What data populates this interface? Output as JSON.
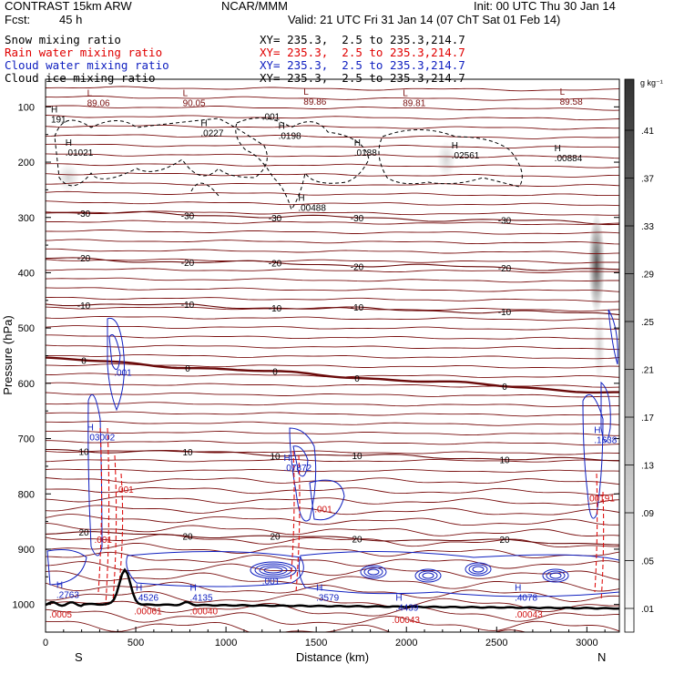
{
  "header": {
    "model": "CONTRAST 15km ARW",
    "forecast_label": "Fcst:",
    "forecast_hours": "45 h",
    "center": "NCAR/MMM",
    "init": "Init: 00 UTC Thu 30 Jan 14",
    "valid": "Valid: 21 UTC Fri 31 Jan 14 (07 ChT Sat 01 Feb 14)"
  },
  "fields": [
    {
      "name": "Snow mixing ratio",
      "color": "#000000",
      "xy": "XY= 235.3,  2.5 to 235.3,214.7"
    },
    {
      "name": "Rain water mixing ratio",
      "color": "#e00000",
      "xy": "XY= 235.3,  2.5 to 235.3,214.7"
    },
    {
      "name": "Cloud water mixing ratio",
      "color": "#1020c0",
      "xy": "XY= 235.3,  2.5 to 235.3,214.7"
    },
    {
      "name": "Cloud ice mixing ratio",
      "color": "#000000",
      "xy": "XY= 235.3,  2.5 to 235.3,214.7"
    }
  ],
  "chart_data": {
    "type": "cross-section",
    "xlabel": "Distance (km)",
    "ylabel": "Pressure (hPa)",
    "xlim": [
      0,
      3180
    ],
    "ylim": [
      1050,
      50
    ],
    "x_ticks": [
      "0",
      "500",
      "1000",
      "1500",
      "2000",
      "2500",
      "3000"
    ],
    "x_tick_values": [
      0,
      500,
      1000,
      1500,
      2000,
      2500,
      3000
    ],
    "y_ticks": [
      "100",
      "200",
      "300",
      "400",
      "500",
      "600",
      "700",
      "800",
      "900",
      "1000"
    ],
    "y_tick_values": [
      100,
      200,
      300,
      400,
      500,
      600,
      700,
      800,
      900,
      1000
    ],
    "end_labels": {
      "left": "S",
      "right": "N"
    },
    "colorbar": {
      "unit": "g kg⁻¹",
      "ticks": [
        ".41",
        ".37",
        ".33",
        ".29",
        ".25",
        ".21",
        ".17",
        ".13",
        ".09",
        ".05",
        ".01"
      ]
    },
    "temperature_isotherms": [
      {
        "label": "-30",
        "p": 290
      },
      {
        "label": "-20",
        "p": 375
      },
      {
        "label": "-10",
        "p": 455
      },
      {
        "label": "0",
        "p": 555
      },
      {
        "label": "10",
        "p": 720
      },
      {
        "label": "20",
        "p": 870
      }
    ],
    "max_min_labels": [
      {
        "kind": "L",
        "value": "89.06",
        "x": 230,
        "p": 90
      },
      {
        "kind": "L",
        "value": "90.05",
        "x": 760,
        "p": 90
      },
      {
        "kind": "L",
        "value": "89.86",
        "x": 1430,
        "p": 88
      },
      {
        "kind": "L",
        "value": "89.81",
        "x": 1980,
        "p": 90
      },
      {
        "kind": "L",
        "value": "89.58",
        "x": 2850,
        "p": 88
      },
      {
        "kind": "",
        "value": ".001",
        "x": 1200,
        "p": 115
      },
      {
        "kind": "H",
        "value": "191",
        "x": 30,
        "p": 120
      },
      {
        "kind": "H",
        "value": ".0227",
        "x": 860,
        "p": 145
      },
      {
        "kind": "H",
        "value": ".0198",
        "x": 1290,
        "p": 150
      },
      {
        "kind": "H",
        "value": ".01021",
        "x": 110,
        "p": 180
      },
      {
        "kind": "H",
        "value": ".0188",
        "x": 1710,
        "p": 180
      },
      {
        "kind": "H",
        "value": ".02561",
        "x": 2250,
        "p": 185
      },
      {
        "kind": "H",
        "value": ".00884",
        "x": 2820,
        "p": 190
      },
      {
        "kind": "H",
        "value": ".00488",
        "x": 1400,
        "p": 280
      },
      {
        "kind": "",
        "value": ".001",
        "x": 380,
        "p": 578
      },
      {
        "kind": "H",
        "value": ".03002",
        "x": 230,
        "p": 695
      },
      {
        "kind": "H",
        "value": ".07872",
        "x": 1320,
        "p": 750
      },
      {
        "kind": "H",
        "value": ".1638",
        "x": 3040,
        "p": 700
      },
      {
        "kind": "",
        "value": ".00191",
        "x": 3000,
        "p": 805
      },
      {
        "kind": "",
        "value": ".001",
        "x": 390,
        "p": 790
      },
      {
        "kind": "",
        "value": ".001",
        "x": 1490,
        "p": 825
      },
      {
        "kind": "",
        "value": ".001",
        "x": 270,
        "p": 880
      },
      {
        "kind": "",
        "value": ".001",
        "x": 1200,
        "p": 955
      },
      {
        "kind": "H",
        "value": ".2763",
        "x": 60,
        "p": 980
      },
      {
        "kind": "H",
        "value": ".4526",
        "x": 500,
        "p": 985
      },
      {
        "kind": "H",
        "value": ".4135",
        "x": 800,
        "p": 985
      },
      {
        "kind": "H",
        "value": ".3579",
        "x": 1500,
        "p": 985
      },
      {
        "kind": "H",
        "value": ".4439",
        "x": 1940,
        "p": 1003
      },
      {
        "kind": "H",
        "value": ".4078",
        "x": 2600,
        "p": 985
      },
      {
        "kind": "",
        "value": ".0005",
        "x": 20,
        "p": 1015
      },
      {
        "kind": "",
        "value": ".00061",
        "x": 490,
        "p": 1010
      },
      {
        "kind": "",
        "value": ".00040",
        "x": 800,
        "p": 1010
      },
      {
        "kind": "",
        "value": ".00043",
        "x": 1920,
        "p": 1025
      },
      {
        "kind": "",
        "value": ".00043",
        "x": 2600,
        "p": 1015
      }
    ]
  }
}
